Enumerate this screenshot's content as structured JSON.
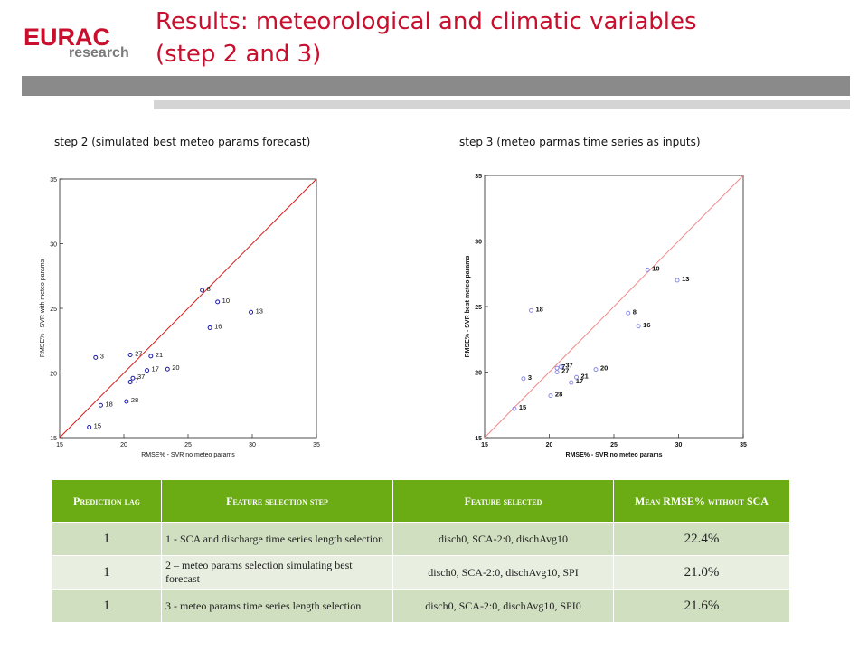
{
  "logo": {
    "main": "EURAC",
    "sub": "research"
  },
  "title": {
    "line1": "Results: meteorological and climatic variables",
    "line2": "(step 2 and 3)"
  },
  "captions": {
    "left": "step 2 (simulated best meteo params forecast)",
    "right": "step 3 (meteo parmas time series as inputs)"
  },
  "chart_data": [
    {
      "type": "scatter",
      "xlabel": "RMSE% - SVR no meteo params",
      "ylabel": "RMSE% - SVR with meteo params",
      "xlim": [
        15,
        35
      ],
      "ylim": [
        15,
        35
      ],
      "ticks": [
        "15",
        "20",
        "25",
        "30",
        "35"
      ],
      "reference_line": "y = x",
      "colors": {
        "points": "#1a1aa8",
        "line": "#d81818"
      },
      "points": [
        {
          "label": "15",
          "x": 17.3,
          "y": 15.8
        },
        {
          "label": "18",
          "x": 18.2,
          "y": 17.5
        },
        {
          "label": "28",
          "x": 20.2,
          "y": 17.8
        },
        {
          "label": "7",
          "x": 20.5,
          "y": 19.3
        },
        {
          "label": "37",
          "x": 20.7,
          "y": 19.6
        },
        {
          "label": "17",
          "x": 21.8,
          "y": 20.2
        },
        {
          "label": "20",
          "x": 23.4,
          "y": 20.3
        },
        {
          "label": "3",
          "x": 17.8,
          "y": 21.2
        },
        {
          "label": "27",
          "x": 20.5,
          "y": 21.4
        },
        {
          "label": "21",
          "x": 22.1,
          "y": 21.3
        },
        {
          "label": "16",
          "x": 26.7,
          "y": 23.5
        },
        {
          "label": "13",
          "x": 29.9,
          "y": 24.7
        },
        {
          "label": "10",
          "x": 27.3,
          "y": 25.5
        },
        {
          "label": "8",
          "x": 26.1,
          "y": 26.4
        }
      ]
    },
    {
      "type": "scatter",
      "xlabel": "RMSE% - SVR no meteo params",
      "ylabel": "RMSE% - SVR best meteo params",
      "xlim": [
        15,
        35
      ],
      "ylim": [
        15,
        35
      ],
      "ticks": [
        "15",
        "20",
        "25",
        "30",
        "35"
      ],
      "reference_line": "y = x",
      "colors": {
        "points": "#8a8ae8",
        "line": "#f08a8a"
      },
      "points": [
        {
          "label": "15",
          "x": 17.3,
          "y": 17.2
        },
        {
          "label": "3",
          "x": 18.0,
          "y": 19.5
        },
        {
          "label": "18",
          "x": 18.6,
          "y": 24.7
        },
        {
          "label": "28",
          "x": 20.1,
          "y": 18.2
        },
        {
          "label": "27",
          "x": 20.6,
          "y": 20.0
        },
        {
          "label": "7",
          "x": 20.6,
          "y": 20.3
        },
        {
          "label": "37",
          "x": 20.9,
          "y": 20.4
        },
        {
          "label": "17",
          "x": 21.7,
          "y": 19.2
        },
        {
          "label": "21",
          "x": 22.1,
          "y": 19.6
        },
        {
          "label": "20",
          "x": 23.6,
          "y": 20.2
        },
        {
          "label": "8",
          "x": 26.1,
          "y": 24.5
        },
        {
          "label": "16",
          "x": 26.9,
          "y": 23.5
        },
        {
          "label": "10",
          "x": 27.6,
          "y": 27.8
        },
        {
          "label": "13",
          "x": 29.9,
          "y": 27.0
        }
      ]
    }
  ],
  "table": {
    "headers": [
      "Prediction lag",
      "Feature selection step",
      "Feature selected",
      "Mean RMSE% without SCA"
    ],
    "rows": [
      {
        "lag": "1",
        "step": "1 - SCA and discharge time series length selection",
        "features": "disch0, SCA-2:0, dischAvg10",
        "rmse": "22.4%"
      },
      {
        "lag": "1",
        "step": "2 – meteo params selection simulating best forecast",
        "features": "disch0, SCA-2:0, dischAvg10, SPI",
        "rmse": "21.0%"
      },
      {
        "lag": "1",
        "step": "3 - meteo params time series length selection",
        "features": "disch0, SCA-2:0, dischAvg10, SPI0",
        "rmse": "21.6%"
      }
    ]
  }
}
